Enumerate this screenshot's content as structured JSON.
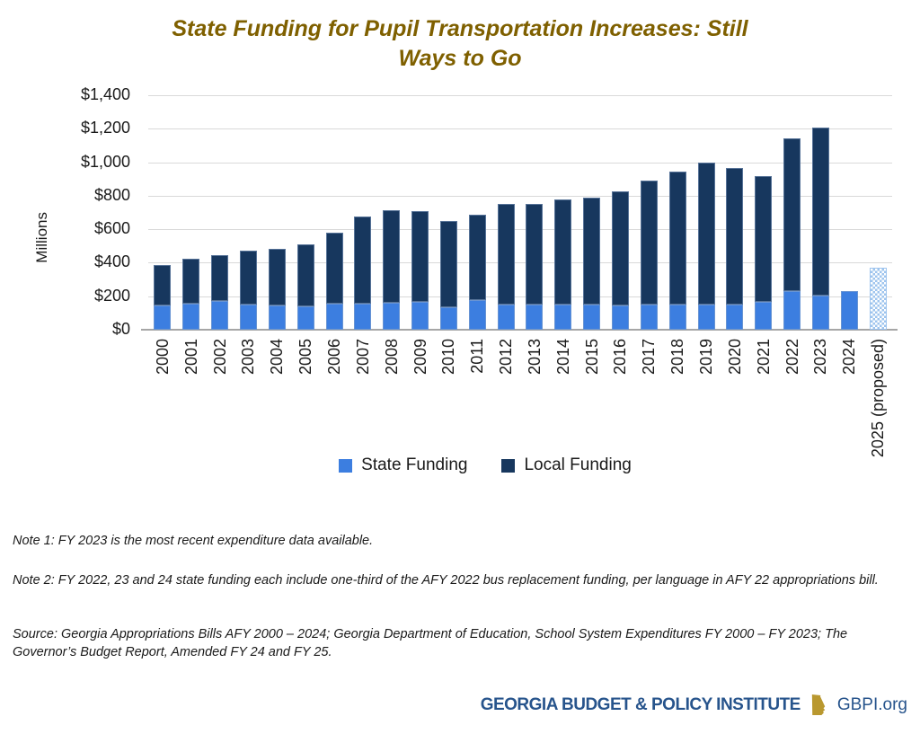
{
  "title": {
    "line1": "State Funding for Pupil Transportation Increases: Still",
    "line2": "Ways to Go"
  },
  "y_axis": {
    "title": "Millions"
  },
  "legend": {
    "state_label": "State Funding",
    "local_label": "Local Funding"
  },
  "notes": {
    "note1": "Note 1: FY 2023 is the most recent expenditure data available.",
    "note2": "Note 2: FY 2022, 23 and 24 state funding each include one-third of the AFY 2022 bus replacement funding, per language in AFY 22 appropriations bill.",
    "source": "Source: Georgia Appropriations Bills AFY 2000 – 2024; Georgia Department of Education, School System Expenditures FY 2000 – FY 2023; The Governor’s Budget Report, Amended FY 24 and FY 25."
  },
  "footer": {
    "org": "GEORGIA BUDGET & POLICY INSTITUTE",
    "site": "GBPI.org"
  },
  "colors": {
    "title": "#7F6000",
    "state_funding": "#3C7EE0",
    "local_funding": "#17375E",
    "proposed_pattern_fill": "#9EC4EE",
    "gridline": "#D9D9D9",
    "axis_line": "#A6A6A6",
    "footer_navy": "#27548C",
    "footer_gold": "#B9982F"
  },
  "chart_data": {
    "type": "bar",
    "stacked": true,
    "title": "State Funding for Pupil Transportation Increases: Still Ways to Go",
    "units": "$ millions",
    "ylabel": "Millions",
    "ylim": [
      0,
      1400
    ],
    "ytick_step": 200,
    "ytick_labels": [
      "$0",
      "$200",
      "$400",
      "$600",
      "$800",
      "$1,000",
      "$1,200",
      "$1,400"
    ],
    "grid": true,
    "legend_position": "bottom",
    "categories": [
      "2000",
      "2001",
      "2002",
      "2003",
      "2004",
      "2005",
      "2006",
      "2007",
      "2008",
      "2009",
      "2010",
      "2011",
      "2012",
      "2013",
      "2014",
      "2015",
      "2016",
      "2017",
      "2018",
      "2019",
      "2020",
      "2021",
      "2022",
      "2023",
      "2024",
      "2025 (proposed)"
    ],
    "series": [
      {
        "name": "State Funding",
        "color": "#3C7EE0",
        "values": [
          143,
          156,
          169,
          151,
          147,
          141,
          153,
          158,
          161,
          164,
          134,
          178,
          148,
          150,
          150,
          149,
          145,
          148,
          152,
          152,
          152,
          167,
          230,
          203,
          228,
          370
        ]
      },
      {
        "name": "Local Funding",
        "color": "#17375E",
        "values": [
          242,
          266,
          276,
          323,
          337,
          371,
          425,
          520,
          552,
          541,
          514,
          512,
          600,
          603,
          630,
          637,
          681,
          738,
          796,
          845,
          814,
          749,
          910,
          1005,
          0,
          0
        ]
      }
    ],
    "totals": [
      385,
      422,
      445,
      474,
      484,
      512,
      578,
      678,
      713,
      705,
      648,
      690,
      748,
      753,
      780,
      786,
      826,
      886,
      948,
      997,
      966,
      916,
      1140,
      1208,
      228,
      370
    ],
    "pattern_category": "2025 (proposed)",
    "pattern_note": "2025 (proposed) bar drawn with light-blue dotted (proposed) fill"
  }
}
